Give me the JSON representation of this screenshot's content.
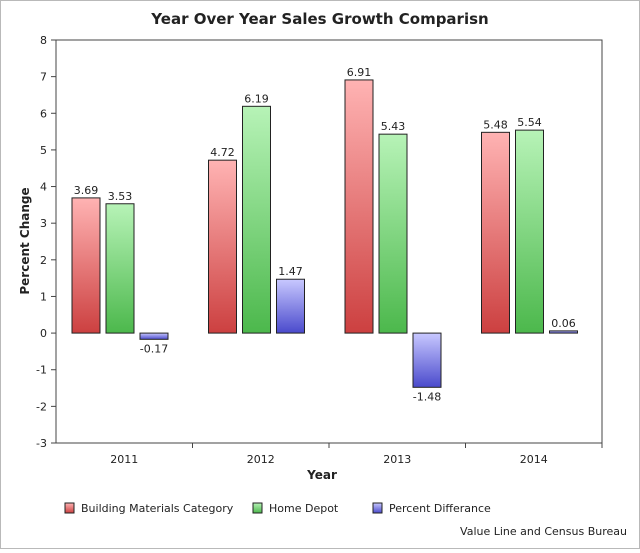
{
  "chart_data": {
    "type": "bar",
    "title": "Year Over Year Sales Growth Comparisn",
    "xlabel": "Year",
    "ylabel": "Percent Change",
    "ylim": [
      -3,
      8
    ],
    "yticks": [
      -3,
      -2,
      -1,
      0,
      1,
      2,
      3,
      4,
      5,
      6,
      7,
      8
    ],
    "categories": [
      "2011",
      "2012",
      "2013",
      "2014"
    ],
    "series": [
      {
        "name": "Building Materials Category",
        "values": [
          3.69,
          4.72,
          6.91,
          5.48
        ],
        "color": "#e05a5a"
      },
      {
        "name": "Home Depot",
        "values": [
          3.53,
          6.19,
          5.43,
          5.54
        ],
        "color": "#5cc75c"
      },
      {
        "name": "Percent Differance",
        "values": [
          -0.17,
          1.47,
          -1.48,
          0.06
        ],
        "color": "#6a6ad8"
      }
    ],
    "grid": false,
    "legend_position": "bottom-left"
  },
  "footer": {
    "source": "Value Line and Census Bureau"
  }
}
